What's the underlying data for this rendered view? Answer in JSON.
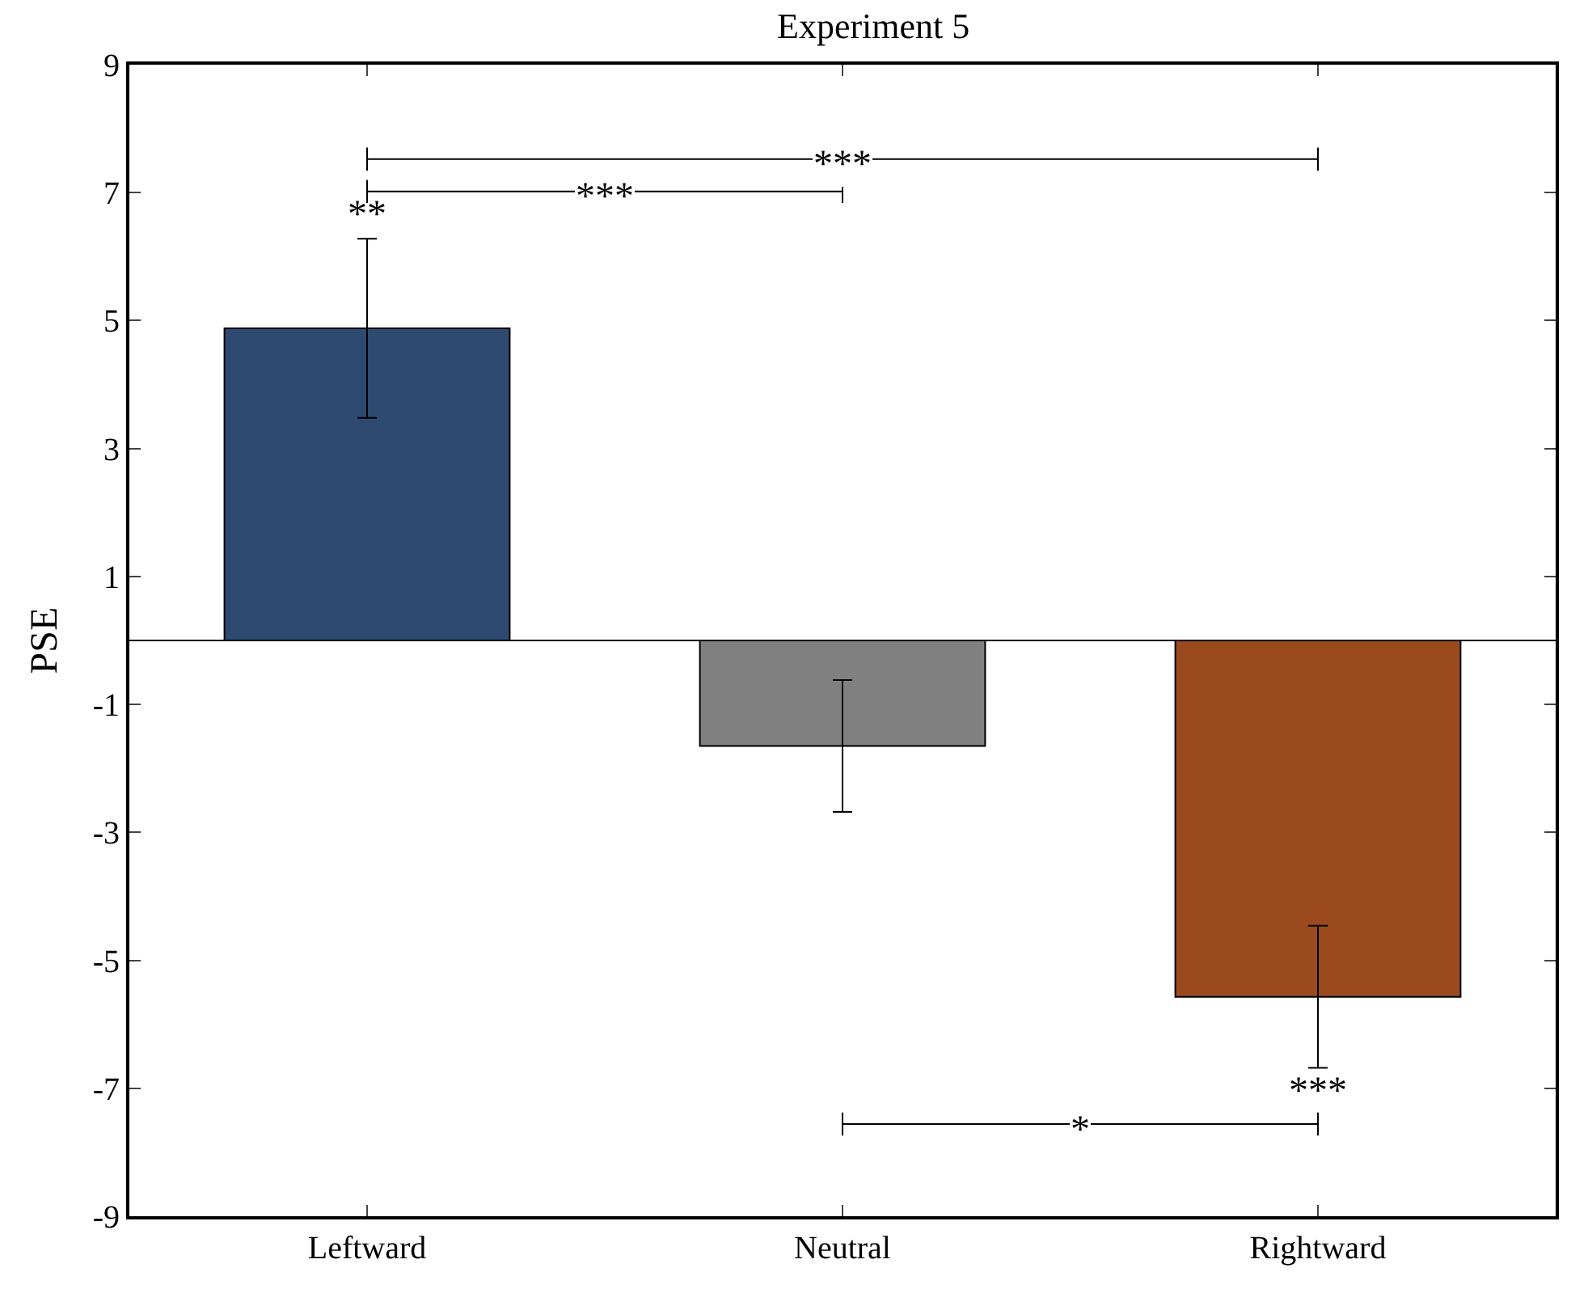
{
  "chart_data": {
    "type": "bar",
    "title": "Experiment 5",
    "ylabel": "PSE",
    "categories": [
      "Leftward",
      "Neutral",
      "Rightward"
    ],
    "values": [
      4.88,
      -1.65,
      -5.57
    ],
    "colors": [
      "#2e4a70",
      "#808080",
      "#9b4a1e"
    ],
    "errors": [
      1.4,
      1.03,
      1.11
    ],
    "ylim": [
      -9,
      9
    ],
    "yticks": [
      -9,
      -7,
      -5,
      -3,
      -1,
      1,
      3,
      5,
      7,
      9
    ],
    "ref_lines": [
      {
        "axis": "y",
        "value": 0,
        "color": "#000000"
      }
    ],
    "annotations": [
      {
        "text": "**",
        "x": "Leftward",
        "y": 6.28
      },
      {
        "text": "***",
        "x": "Rightward",
        "y": -6.68
      },
      "***",
      "***",
      "*"
    ]
  }
}
